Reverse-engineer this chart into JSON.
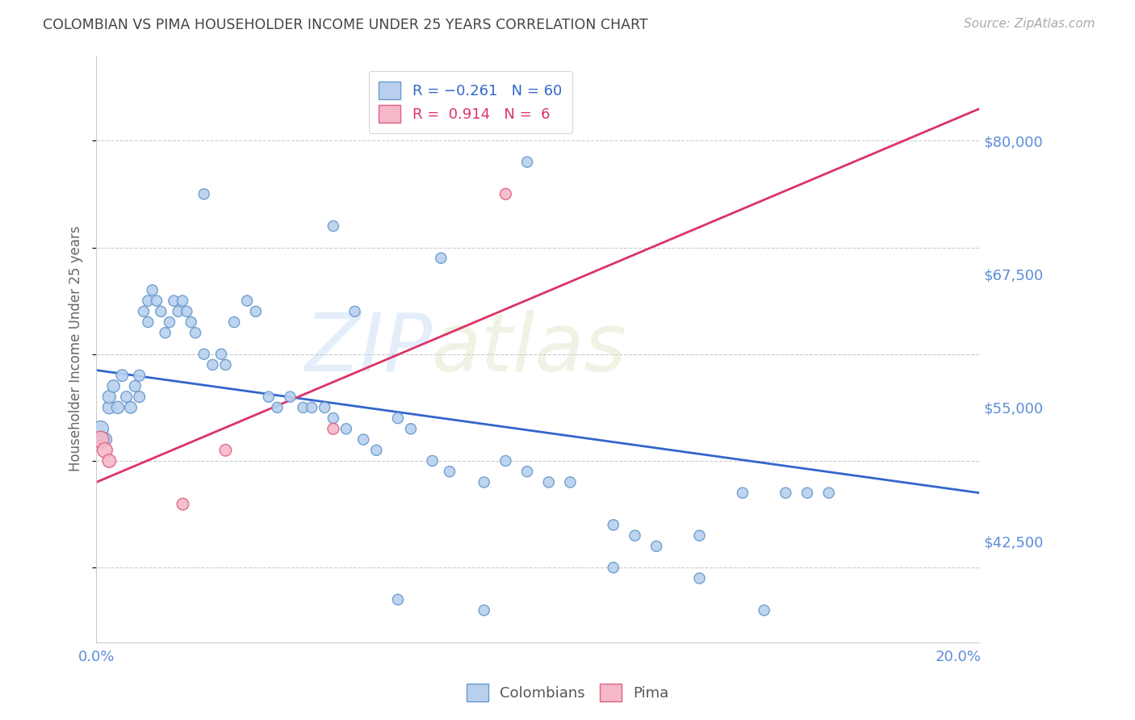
{
  "title": "COLOMBIAN VS PIMA HOUSEHOLDER INCOME UNDER 25 YEARS CORRELATION CHART",
  "source": "Source: ZipAtlas.com",
  "ylabel": "Householder Income Under 25 years",
  "xlim": [
    0.0,
    0.205
  ],
  "ylim": [
    33000,
    88000
  ],
  "yticks": [
    42500,
    55000,
    67500,
    80000
  ],
  "ytick_labels": [
    "$42,500",
    "$55,000",
    "$67,500",
    "$80,000"
  ],
  "xticks": [
    0.0,
    0.05,
    0.1,
    0.15,
    0.2
  ],
  "xtick_labels": [
    "0.0%",
    "",
    "",
    "",
    "20.0%"
  ],
  "watermark_part1": "ZIP",
  "watermark_part2": "atlas",
  "axis_color": "#5b8dd9",
  "grid_color": "#cccccc",
  "background_color": "#ffffff",
  "title_color": "#444444",
  "colombians": {
    "color": "#b8d0ee",
    "edge_color": "#6699cc",
    "R": -0.261,
    "N": 60,
    "x": [
      0.001,
      0.002,
      0.003,
      0.003,
      0.004,
      0.005,
      0.006,
      0.007,
      0.008,
      0.009,
      0.01,
      0.01,
      0.011,
      0.012,
      0.012,
      0.013,
      0.014,
      0.015,
      0.016,
      0.017,
      0.018,
      0.019,
      0.02,
      0.021,
      0.022,
      0.023,
      0.025,
      0.027,
      0.029,
      0.03,
      0.032,
      0.035,
      0.037,
      0.04,
      0.042,
      0.045,
      0.048,
      0.05,
      0.053,
      0.055,
      0.058,
      0.062,
      0.065,
      0.07,
      0.073,
      0.078,
      0.082,
      0.09,
      0.095,
      0.1,
      0.105,
      0.11,
      0.12,
      0.125,
      0.13,
      0.14,
      0.15,
      0.16,
      0.165,
      0.17
    ],
    "y": [
      53000,
      52000,
      55000,
      56000,
      57000,
      55000,
      58000,
      56000,
      55000,
      57000,
      56000,
      58000,
      64000,
      63000,
      65000,
      66000,
      65000,
      64000,
      62000,
      63000,
      65000,
      64000,
      65000,
      64000,
      63000,
      62000,
      60000,
      59000,
      60000,
      59000,
      63000,
      65000,
      64000,
      56000,
      55000,
      56000,
      55000,
      55000,
      55000,
      54000,
      53000,
      52000,
      51000,
      54000,
      53000,
      50000,
      49000,
      48000,
      50000,
      49000,
      48000,
      48000,
      44000,
      43000,
      42000,
      43000,
      47000,
      47000,
      47000,
      47000
    ],
    "sizes": [
      200,
      150,
      130,
      130,
      120,
      120,
      110,
      100,
      110,
      100,
      100,
      100,
      90,
      90,
      90,
      90,
      90,
      90,
      90,
      90,
      90,
      90,
      90,
      90,
      90,
      90,
      90,
      90,
      90,
      90,
      90,
      90,
      90,
      90,
      90,
      90,
      90,
      90,
      90,
      90,
      90,
      90,
      90,
      90,
      90,
      90,
      90,
      90,
      90,
      90,
      90,
      90,
      90,
      90,
      90,
      90,
      90,
      90,
      90,
      90
    ]
  },
  "colombians_outliers": {
    "color": "#b8d0ee",
    "edge_color": "#6699cc",
    "x": [
      0.025,
      0.055,
      0.1,
      0.06,
      0.09,
      0.12,
      0.14,
      0.155,
      0.08,
      0.07
    ],
    "y": [
      75000,
      72000,
      78000,
      64000,
      36000,
      40000,
      39000,
      36000,
      69000,
      37000
    ],
    "sizes": [
      90,
      90,
      90,
      90,
      90,
      90,
      90,
      90,
      90,
      90
    ]
  },
  "pima": {
    "color": "#f4b8c8",
    "edge_color": "#e06080",
    "R": 0.914,
    "N": 6,
    "x": [
      0.001,
      0.002,
      0.003,
      0.03,
      0.055,
      0.095
    ],
    "y": [
      52000,
      51000,
      50000,
      51000,
      53000,
      75000
    ],
    "sizes": [
      220,
      180,
      140,
      110,
      100,
      100
    ]
  },
  "pima_outlier": {
    "color": "#f4b8c8",
    "edge_color": "#e06080",
    "x": [
      0.02
    ],
    "y": [
      46000
    ],
    "sizes": [
      110
    ]
  },
  "legend_entries": [
    {
      "label_r": "R = ",
      "label_rv": "-0.261",
      "label_n": "  N = ",
      "label_nv": "60"
    },
    {
      "label_r": "R =  ",
      "label_rv": "0.914",
      "label_n": "  N =  ",
      "label_nv": "6"
    }
  ],
  "trendline_blue": {
    "color": "#3366cc",
    "linewidth": 2.0
  },
  "trendline_pink": {
    "color": "#dd3366",
    "linewidth": 2.0
  }
}
